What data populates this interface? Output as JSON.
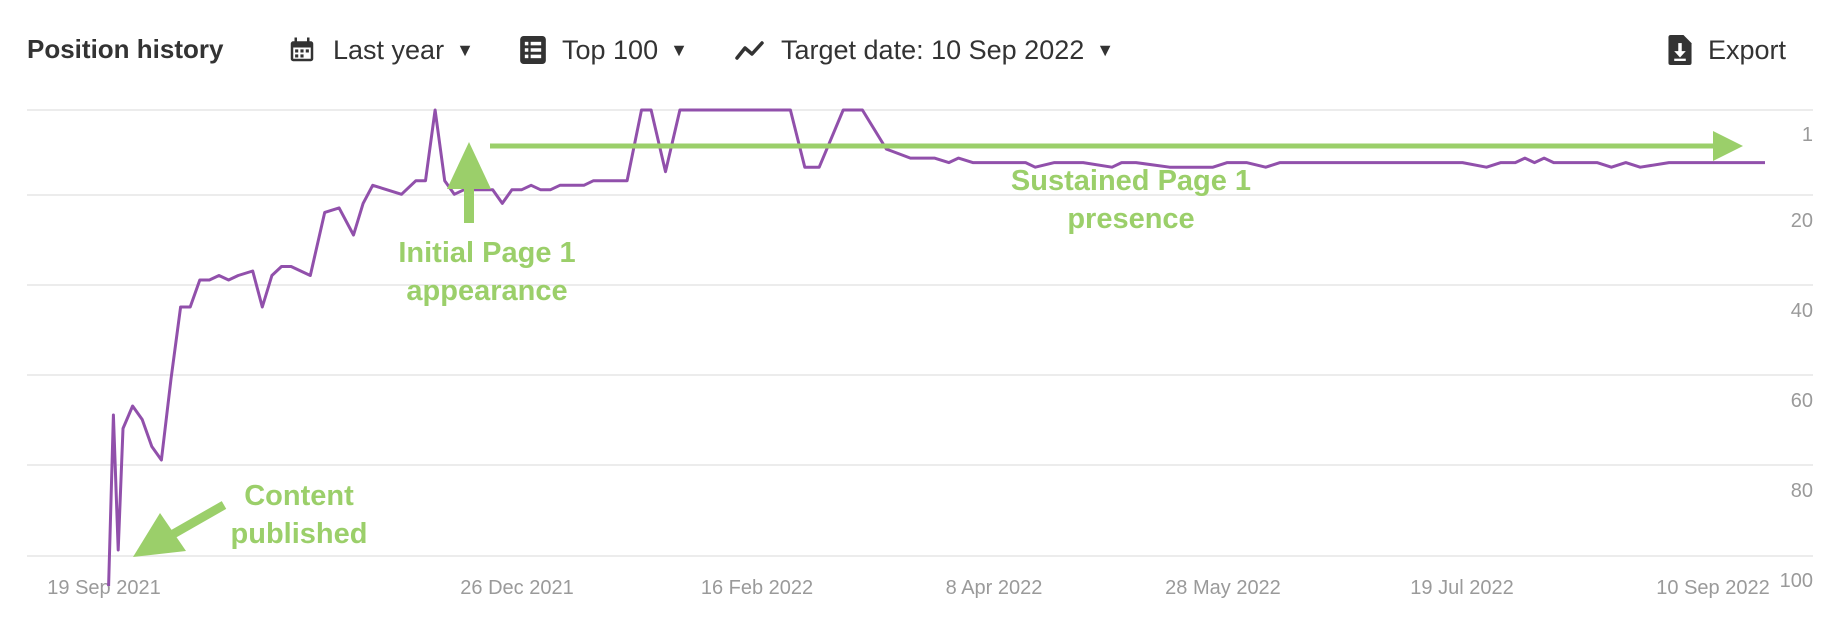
{
  "toolbar": {
    "title": "Position history",
    "period_label": "Last year",
    "period_icon": "calendar-icon",
    "top_label": "Top 100",
    "top_icon": "list-icon",
    "target_label": "Target date: 10 Sep 2022",
    "target_icon": "trend-line-icon",
    "export_label": "Export",
    "export_icon": "download-file-icon"
  },
  "colors": {
    "series": "#9150ab",
    "annotation": "#9bcf6a",
    "grid": "#e6e6e6",
    "tick": "#9a9a9a"
  },
  "chart_data": {
    "type": "line",
    "y_reversed": true,
    "ylim": [
      1,
      100
    ],
    "y_ticks": [
      "1",
      "20",
      "40",
      "60",
      "80",
      "100"
    ],
    "x_ticks": [
      "19 Sep 2021",
      "26 Dec 2021",
      "16 Feb 2022",
      "8 Apr 2022",
      "28 May 2022",
      "19 Jul 2022",
      "10 Sep 2022"
    ],
    "xlim": [
      "2021-09-12",
      "2022-09-19"
    ],
    "grid": true,
    "series": [
      {
        "x": [
          "2021-09-29",
          "2021-09-30",
          "2021-10-01",
          "2021-10-02",
          "2021-10-04",
          "2021-10-06",
          "2021-10-08",
          "2021-10-10",
          "2021-10-12",
          "2021-10-14",
          "2021-10-16",
          "2021-10-18",
          "2021-10-20",
          "2021-10-22",
          "2021-10-24",
          "2021-10-26",
          "2021-10-29",
          "2021-10-31",
          "2021-11-02",
          "2021-11-04",
          "2021-11-06",
          "2021-11-08",
          "2021-11-10",
          "2021-11-13",
          "2021-11-16",
          "2021-11-19",
          "2021-11-21",
          "2021-11-23",
          "2021-11-26",
          "2021-11-29",
          "2021-12-02",
          "2021-12-04",
          "2021-12-06",
          "2021-12-08",
          "2021-12-10",
          "2021-12-12",
          "2021-12-15",
          "2021-12-18",
          "2021-12-20",
          "2021-12-22",
          "2021-12-24",
          "2021-12-26",
          "2021-12-28",
          "2021-12-30",
          "2022-01-01",
          "2022-01-03",
          "2022-01-06",
          "2022-01-08",
          "2022-01-10",
          "2022-01-13",
          "2022-01-15",
          "2022-01-18",
          "2022-01-20",
          "2022-01-23",
          "2022-01-26",
          "2022-01-29",
          "2022-02-01",
          "2022-02-04",
          "2022-02-07",
          "2022-02-09",
          "2022-02-12",
          "2022-02-14",
          "2022-02-16",
          "2022-02-18",
          "2022-02-21",
          "2022-02-24",
          "2022-03-01",
          "2022-03-05",
          "2022-03-10",
          "2022-03-15",
          "2022-03-18",
          "2022-03-20",
          "2022-03-23",
          "2022-03-25",
          "2022-03-28",
          "2022-03-31",
          "2022-04-02",
          "2022-04-05",
          "2022-04-08",
          "2022-04-10",
          "2022-04-14",
          "2022-04-20",
          "2022-04-26",
          "2022-04-28",
          "2022-05-01",
          "2022-05-08",
          "2022-05-12",
          "2022-05-14",
          "2022-05-17",
          "2022-05-20",
          "2022-05-24",
          "2022-05-28",
          "2022-05-31",
          "2022-06-02",
          "2022-06-05",
          "2022-06-12",
          "2022-06-20",
          "2022-06-30",
          "2022-07-08",
          "2022-07-13",
          "2022-07-16",
          "2022-07-19",
          "2022-07-21",
          "2022-07-23",
          "2022-07-25",
          "2022-07-27",
          "2022-07-31",
          "2022-08-05",
          "2022-08-08",
          "2022-08-11",
          "2022-08-14",
          "2022-08-20",
          "2022-08-30",
          "2022-09-09"
        ],
        "y": [
          100,
          62,
          92,
          65,
          60,
          63,
          69,
          72,
          54,
          38,
          38,
          32,
          32,
          31,
          32,
          31,
          30,
          38,
          31,
          29,
          29,
          30,
          31,
          17,
          16,
          22,
          15,
          11,
          12,
          13,
          10,
          10,
          1,
          10,
          13,
          12,
          12,
          12,
          15,
          12,
          12,
          11,
          12,
          12,
          11,
          11,
          11,
          10,
          10,
          10,
          10,
          1,
          1,
          8,
          1,
          1,
          1,
          1,
          1,
          1,
          1,
          1,
          1,
          1,
          7,
          7,
          1,
          1,
          3,
          5,
          5,
          5,
          6,
          5,
          6,
          6,
          6,
          6,
          6,
          7,
          6,
          6,
          7,
          6,
          6,
          7,
          7,
          7,
          7,
          6,
          6,
          7,
          6,
          6,
          6,
          6,
          6,
          6,
          6,
          7,
          6,
          6,
          5,
          6,
          5,
          6,
          6,
          6,
          7,
          6,
          7,
          6,
          6,
          6
        ]
      }
    ],
    "annotations": [
      {
        "text": [
          "Content",
          "published"
        ]
      },
      {
        "text": [
          "Initial Page 1",
          "appearance"
        ]
      },
      {
        "text": [
          "Sustained Page 1",
          "presence"
        ]
      }
    ]
  }
}
